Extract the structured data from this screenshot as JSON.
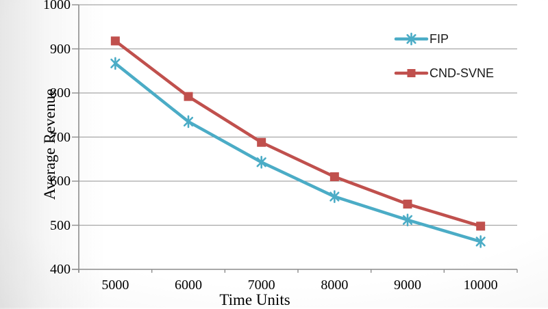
{
  "chart_data": {
    "type": "line",
    "title": "",
    "xlabel": "Time Units",
    "ylabel": "Average Revenue",
    "categories": [
      "5000",
      "6000",
      "7000",
      "8000",
      "9000",
      "10000"
    ],
    "series": [
      {
        "name": "FIP",
        "color": "#4BACC6",
        "marker": "asterisk",
        "values": [
          867,
          735,
          643,
          565,
          512,
          463
        ]
      },
      {
        "name": "CND-SVNE",
        "color": "#C0504D",
        "marker": "square",
        "values": [
          918,
          792,
          688,
          610,
          548,
          498
        ]
      }
    ],
    "ylim": [
      400,
      1000
    ],
    "yticks": [
      400,
      500,
      600,
      700,
      800,
      900,
      1000
    ],
    "grid": "horizontal",
    "legend_position": "inside-top-right",
    "colors": {
      "gridline": "#A6A6A6",
      "axis": "#8C8C8C",
      "tick_text": "#000000",
      "legend_text": "#1A1A1A"
    }
  }
}
